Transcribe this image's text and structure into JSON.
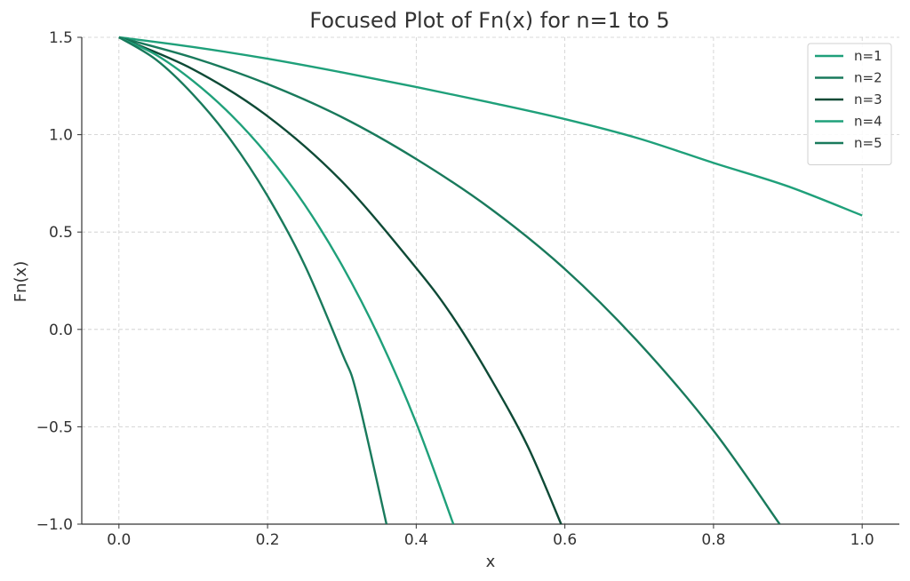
{
  "chart_data": {
    "type": "line",
    "title": "Focused Plot of Fn(x) for n=1 to 5",
    "xlabel": "x",
    "ylabel": "Fn(x)",
    "xlim": [
      -0.05,
      1.05
    ],
    "ylim": [
      -1.0,
      1.5
    ],
    "xticks": [
      0.0,
      0.2,
      0.4,
      0.6,
      0.8,
      1.0
    ],
    "xtick_labels": [
      "0.0",
      "0.2",
      "0.4",
      "0.6",
      "0.8",
      "1.0"
    ],
    "yticks": [
      -1.0,
      -0.5,
      0.0,
      0.5,
      1.0,
      1.5
    ],
    "ytick_labels": [
      "−1.0",
      "−0.5",
      "0.0",
      "0.5",
      "1.0",
      "1.5"
    ],
    "grid": true,
    "legend_position": "top-right",
    "series": [
      {
        "name": "n=1",
        "color": "#1fa07a",
        "x": [
          0.0,
          0.1,
          0.2,
          0.3,
          0.4,
          0.5,
          0.6,
          0.7,
          0.8,
          0.9,
          1.0
        ],
        "y": [
          1.5,
          1.45,
          1.39,
          1.32,
          1.245,
          1.165,
          1.08,
          0.98,
          0.855,
          0.735,
          0.585
        ]
      },
      {
        "name": "n=2",
        "color": "#197a5c",
        "x": [
          0.0,
          0.1,
          0.2,
          0.3,
          0.4,
          0.5,
          0.6,
          0.7,
          0.8,
          0.889
        ],
        "y": [
          1.5,
          1.395,
          1.26,
          1.09,
          0.875,
          0.62,
          0.31,
          -0.07,
          -0.52,
          -1.0
        ]
      },
      {
        "name": "n=3",
        "color": "#0e4a36",
        "x": [
          0.0,
          0.1,
          0.2,
          0.3,
          0.4,
          0.45,
          0.5,
          0.55,
          0.595
        ],
        "y": [
          1.5,
          1.335,
          1.095,
          0.76,
          0.315,
          0.06,
          -0.25,
          -0.6,
          -1.0
        ]
      },
      {
        "name": "n=4",
        "color": "#1fa07a",
        "x": [
          0.0,
          0.05,
          0.1,
          0.15,
          0.2,
          0.25,
          0.3,
          0.35,
          0.4,
          0.45
        ],
        "y": [
          1.5,
          1.41,
          1.275,
          1.105,
          0.895,
          0.64,
          0.33,
          -0.04,
          -0.48,
          -1.0
        ]
      },
      {
        "name": "n=5",
        "color": "#197a5c",
        "x": [
          0.0,
          0.05,
          0.1,
          0.15,
          0.2,
          0.25,
          0.3,
          0.32,
          0.36
        ],
        "y": [
          1.5,
          1.385,
          1.205,
          0.975,
          0.685,
          0.33,
          -0.12,
          -0.33,
          -1.0
        ]
      }
    ]
  }
}
